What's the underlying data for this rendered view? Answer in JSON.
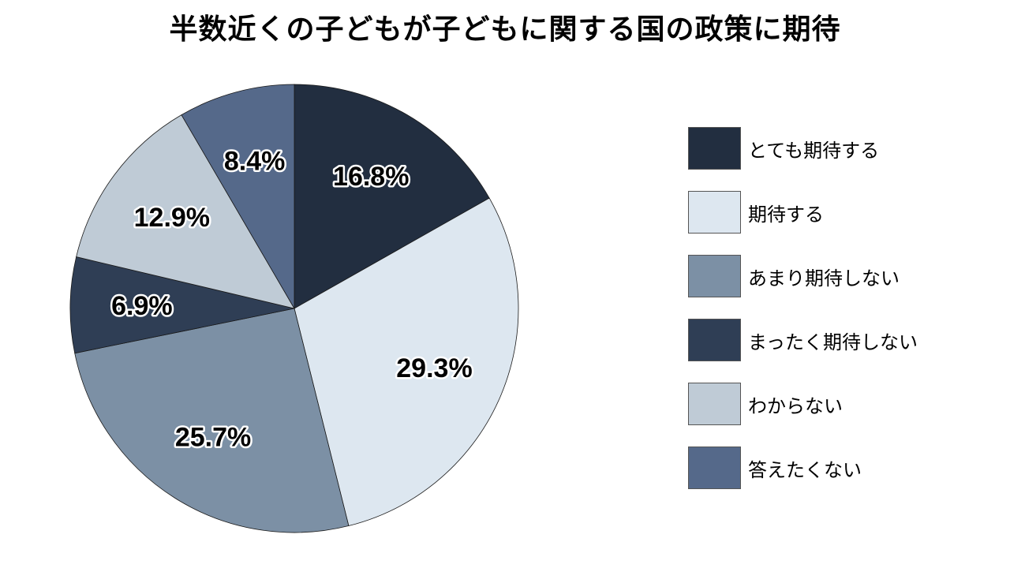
{
  "chart_data": {
    "type": "pie",
    "title": "半数近くの子どもが子どもに関する国の政策に期待",
    "categories": [
      "とても期待する",
      "期待する",
      "あまり期待しない",
      "まったく期待しない",
      "わからない",
      "答えたくない"
    ],
    "values": [
      16.8,
      29.3,
      25.7,
      6.9,
      12.9,
      8.4
    ],
    "value_labels": [
      "16.8%",
      "29.3%",
      "25.7%",
      "6.9%",
      "12.9%",
      "8.4%"
    ],
    "colors": [
      "#222e40",
      "#dde7f0",
      "#7c90a5",
      "#2f3e55",
      "#bfcbd6",
      "#55698a"
    ],
    "legend_position": "right",
    "start": "12 o'clock, clockwise"
  }
}
